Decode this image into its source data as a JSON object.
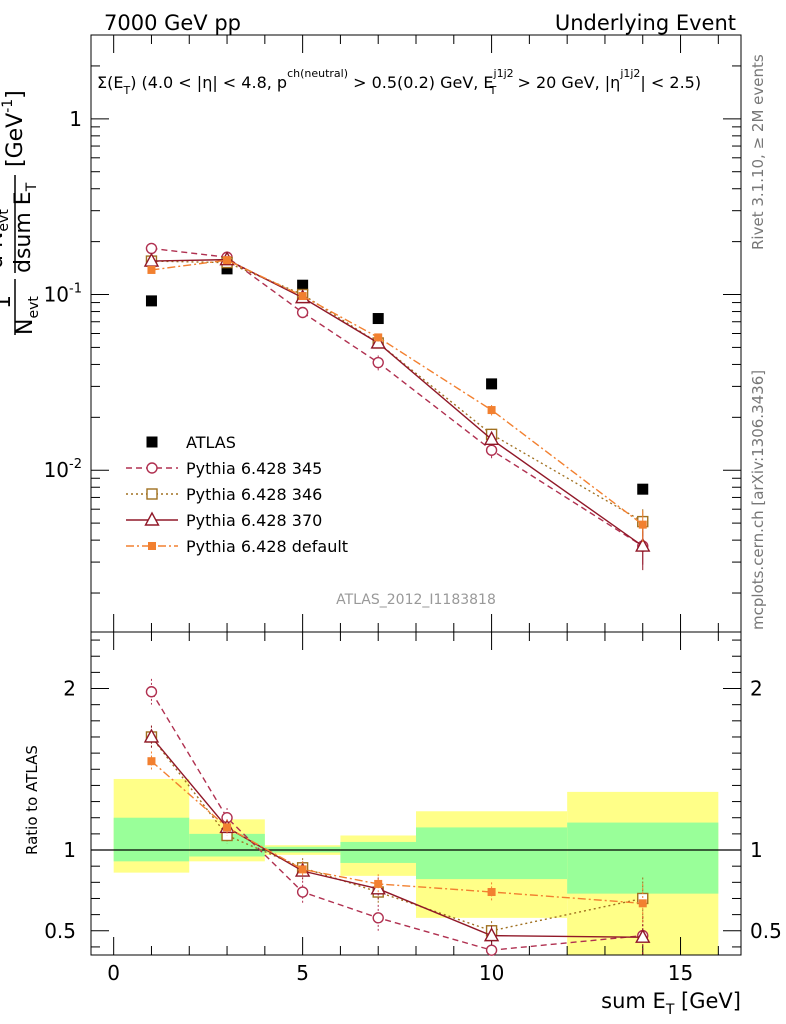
{
  "header": {
    "left": "7000 GeV pp",
    "right": "Underlying Event",
    "cuts": "Σ(E_T) (4.0 < |η| < 4.8, p^ch(neutral) > 0.5(0.2) GeV, E_T^j1j2 > 20 GeV, |η^j1j2| < 2.5)",
    "cuts_parts": {
      "sigma": "Σ(E",
      "sub_t": "T",
      "a": ") (4.0 < |η| < 4.8, p",
      "sup_ch": "ch(neutral)",
      "b": " > 0.5(0.2) GeV, E",
      "sup_j": "j1j2",
      "sub_t2": "T",
      "c": " > 20 GeV, |η",
      "sup_j2": "j1j2",
      "d": "| < 2.5)"
    },
    "side_rivet": "Rivet 3.1.10, ≥ 2M events",
    "side_mcplots": "mcplots.cern.ch [arXiv:1306.3436]",
    "analysis": "ATLAS_2012_I1183818"
  },
  "colors": {
    "atlas": "#000000",
    "p345": "#b03050",
    "p346": "#a07020",
    "p370": "#901828",
    "pdef": "#f28030",
    "band_yellow": "#ffff88",
    "band_green": "#99ff99"
  },
  "chart_data": [
    {
      "type": "scatter",
      "name": "main",
      "title": "Underlying Event",
      "ylabel": "1/N_evt dN_evt/dsum E_T [GeV^-1]",
      "ylabel_parts": {
        "one": "1",
        "nevt": "N",
        "evt": "evt",
        "d": "d N",
        "dsum": "dsum E",
        "t": "T",
        "unit": "[GeV",
        "sup": "-1",
        "close": "]"
      },
      "yscale": "log",
      "ylim": [
        0.0012,
        3.0
      ],
      "xlim": [
        -0.6,
        16.6
      ],
      "yticks": [
        {
          "v": 0.01,
          "base": "10",
          "exp": "-2"
        },
        {
          "v": 0.1,
          "base": "10",
          "exp": "-1"
        },
        {
          "v": 1,
          "base": "1",
          "exp": ""
        }
      ],
      "series": [
        {
          "name": "ATLAS",
          "key": "atlas",
          "marker": "square-filled",
          "line": "none",
          "x": [
            1,
            3,
            5,
            7,
            10,
            14
          ],
          "y": [
            0.092,
            0.14,
            0.113,
            0.073,
            0.031,
            0.0078
          ]
        },
        {
          "name": "Pythia 6.428 345",
          "key": "p345",
          "marker": "circle-open",
          "line": "dashed",
          "x": [
            1,
            3,
            5,
            7,
            10,
            14
          ],
          "y": [
            0.183,
            0.163,
            0.079,
            0.041,
            0.013,
            0.0037
          ],
          "err": [
            0.004,
            0.004,
            0.004,
            0.004,
            0.0013,
            0.0008
          ]
        },
        {
          "name": "Pythia 6.428 346",
          "key": "p346",
          "marker": "square-open",
          "line": "dotted",
          "x": [
            1,
            3,
            5,
            7,
            10,
            14
          ],
          "y": [
            0.155,
            0.152,
            0.1,
            0.053,
            0.016,
            0.0051
          ],
          "err": [
            0.004,
            0.004,
            0.004,
            0.003,
            0.0012,
            0.0009
          ]
        },
        {
          "name": "Pythia 6.428 370",
          "key": "p370",
          "marker": "triangle-open",
          "line": "solid",
          "x": [
            1,
            3,
            5,
            7,
            10,
            14
          ],
          "y": [
            0.155,
            0.158,
            0.096,
            0.053,
            0.015,
            0.0037
          ],
          "err": [
            0.004,
            0.004,
            0.004,
            0.003,
            0.0012,
            0.001
          ]
        },
        {
          "name": "Pythia 6.428 default",
          "key": "pdef",
          "marker": "square-filled-small",
          "line": "dashdot",
          "x": [
            1,
            3,
            5,
            7,
            10,
            14
          ],
          "y": [
            0.138,
            0.157,
            0.098,
            0.057,
            0.022,
            0.0049
          ],
          "err": [
            0.004,
            0.004,
            0.003,
            0.003,
            0.0015,
            0.001
          ]
        }
      ],
      "legend": "left"
    },
    {
      "type": "scatter",
      "name": "ratio",
      "ylabel": "Ratio to ATLAS",
      "xlabel": "sum E_T [GeV]",
      "xlabel_parts": {
        "a": "sum E",
        "sub": "T",
        "b": " [GeV]"
      },
      "ylim": [
        0.35,
        2.35
      ],
      "xlim": [
        -0.6,
        16.6
      ],
      "yticks": [
        0.5,
        1,
        2
      ],
      "xticks": [
        0,
        5,
        10,
        15
      ],
      "reference": 1,
      "bands": [
        {
          "x0": 0,
          "x1": 2,
          "yellow": [
            0.86,
            1.44
          ],
          "green": [
            0.93,
            1.2
          ]
        },
        {
          "x0": 2,
          "x1": 4,
          "yellow": [
            0.93,
            1.19
          ],
          "green": [
            0.96,
            1.1
          ]
        },
        {
          "x0": 4,
          "x1": 6,
          "yellow": [
            0.97,
            1.03
          ],
          "green": [
            0.985,
            1.02
          ]
        },
        {
          "x0": 6,
          "x1": 8,
          "yellow": [
            0.84,
            1.09
          ],
          "green": [
            0.92,
            1.05
          ]
        },
        {
          "x0": 8,
          "x1": 12,
          "yellow": [
            0.58,
            1.24
          ],
          "green": [
            0.82,
            1.14
          ]
        },
        {
          "x0": 12,
          "x1": 16,
          "yellow": [
            0.35,
            1.36
          ],
          "green": [
            0.73,
            1.17
          ]
        }
      ],
      "series": [
        {
          "name": "Pythia 6.428 345",
          "key": "p345",
          "x": [
            1,
            3,
            5,
            7,
            10,
            14
          ],
          "y": [
            1.98,
            1.2,
            0.74,
            0.58,
            0.38,
            0.47
          ],
          "err": [
            0.08,
            0.06,
            0.07,
            0.08,
            0.05,
            0.12
          ]
        },
        {
          "name": "Pythia 6.428 346",
          "key": "p346",
          "x": [
            1,
            3,
            5,
            7,
            10,
            14
          ],
          "y": [
            1.7,
            1.09,
            0.89,
            0.74,
            0.5,
            0.7
          ],
          "err": [
            0.07,
            0.05,
            0.06,
            0.07,
            0.06,
            0.13
          ]
        },
        {
          "name": "Pythia 6.428 370",
          "key": "p370",
          "x": [
            1,
            3,
            5,
            7,
            10,
            14
          ],
          "y": [
            1.7,
            1.14,
            0.87,
            0.76,
            0.47,
            0.46
          ],
          "err": [
            0.07,
            0.05,
            0.06,
            0.07,
            0.06,
            0.13
          ]
        },
        {
          "name": "Pythia 6.428 default",
          "key": "pdef",
          "x": [
            1,
            3,
            5,
            7,
            10,
            14
          ],
          "y": [
            1.55,
            1.14,
            0.88,
            0.79,
            0.74,
            0.67
          ],
          "err": [
            0.06,
            0.05,
            0.05,
            0.06,
            0.06,
            0.12
          ]
        }
      ]
    }
  ]
}
